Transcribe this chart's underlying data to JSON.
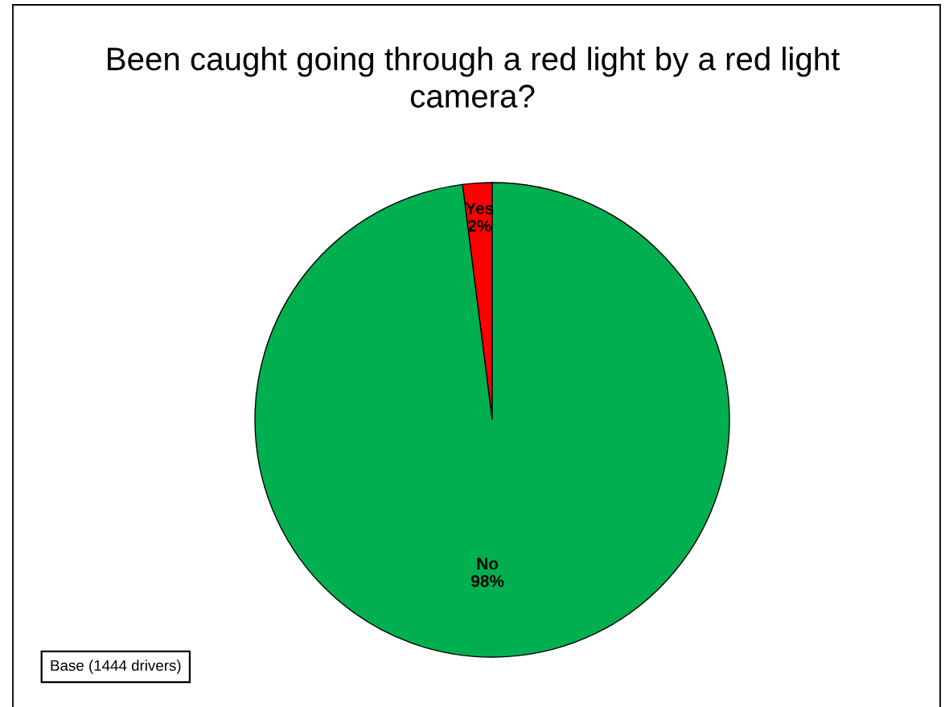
{
  "chart_data": {
    "type": "pie",
    "title": "Been caught going through a red light by a red light camera?",
    "categories": [
      "Yes",
      "No"
    ],
    "values": [
      2,
      98
    ],
    "colors": [
      "#ff0000",
      "#00b050"
    ],
    "value_labels": [
      "2%",
      "98%"
    ],
    "annotations": [
      "Base (1444 drivers)"
    ]
  }
}
